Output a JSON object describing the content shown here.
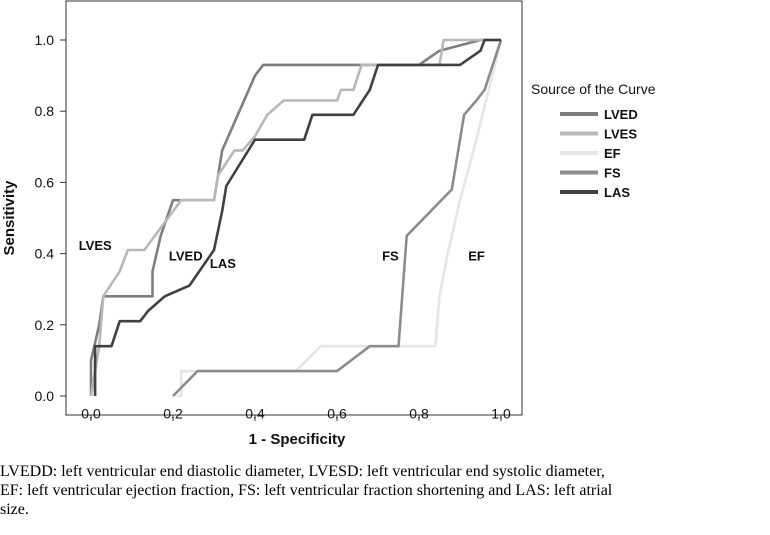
{
  "chart_data": {
    "type": "line",
    "xlabel": "1 - Specificity",
    "ylabel": "Sensitivity",
    "xlim": [
      0,
      1
    ],
    "ylim": [
      0,
      1
    ],
    "xticks": [
      "0.0",
      "0.2",
      "0.4",
      "0.6",
      "0.8",
      "1.0"
    ],
    "yticks": [
      "0.0",
      "0.2",
      "0.4",
      "0.6",
      "0.8",
      "1.0"
    ],
    "grid": false,
    "legend": {
      "title": "Source of the Curve",
      "placement": "right"
    },
    "series": [
      {
        "name": "LVED",
        "color": "#7f7f7f",
        "x": [
          0,
          0,
          0.02,
          0.03,
          0.05,
          0.15,
          0.15,
          0.17,
          0.2,
          0.3,
          0.32,
          0.4,
          0.42,
          0.8,
          0.85,
          0.95,
          1.0
        ],
        "y": [
          0,
          0.1,
          0.2,
          0.28,
          0.28,
          0.28,
          0.35,
          0.45,
          0.55,
          0.55,
          0.69,
          0.9,
          0.93,
          0.93,
          0.97,
          1.0,
          1.0
        ]
      },
      {
        "name": "LVES",
        "color": "#b8b8b8",
        "x": [
          0,
          0.02,
          0.03,
          0.07,
          0.09,
          0.13,
          0.22,
          0.3,
          0.31,
          0.35,
          0.37,
          0.4,
          0.43,
          0.47,
          0.6,
          0.61,
          0.64,
          0.66,
          0.85,
          0.86,
          1.0
        ],
        "y": [
          0,
          0.14,
          0.28,
          0.35,
          0.41,
          0.41,
          0.55,
          0.55,
          0.62,
          0.69,
          0.69,
          0.73,
          0.79,
          0.83,
          0.83,
          0.86,
          0.86,
          0.93,
          0.93,
          1.0,
          1.0
        ]
      },
      {
        "name": "EF",
        "color": "#e6e6e6",
        "x": [
          0.21,
          0.22,
          0.22,
          0.5,
          0.56,
          0.84,
          0.85,
          0.87,
          0.9,
          0.94,
          0.97,
          0.99,
          1.0
        ],
        "y": [
          0,
          0,
          0.07,
          0.07,
          0.14,
          0.14,
          0.28,
          0.4,
          0.55,
          0.72,
          0.86,
          0.95,
          1.0
        ]
      },
      {
        "name": "FS",
        "color": "#8c8c8c",
        "x": [
          0.2,
          0.26,
          0.6,
          0.68,
          0.75,
          0.77,
          0.88,
          0.89,
          0.9,
          0.91,
          0.94,
          0.96,
          0.98,
          1.0
        ],
        "y": [
          0,
          0.07,
          0.07,
          0.14,
          0.14,
          0.45,
          0.58,
          0.65,
          0.72,
          0.79,
          0.83,
          0.86,
          0.93,
          1.0
        ]
      },
      {
        "name": "LAS",
        "color": "#404040",
        "x": [
          0.01,
          0.01,
          0.05,
          0.07,
          0.1,
          0.12,
          0.14,
          0.18,
          0.24,
          0.3,
          0.32,
          0.33,
          0.4,
          0.42,
          0.52,
          0.54,
          0.64,
          0.68,
          0.7,
          0.85,
          0.9,
          0.95,
          0.96,
          1.0
        ],
        "y": [
          0,
          0.14,
          0.14,
          0.21,
          0.21,
          0.21,
          0.24,
          0.28,
          0.31,
          0.41,
          0.52,
          0.59,
          0.72,
          0.72,
          0.72,
          0.79,
          0.79,
          0.86,
          0.93,
          0.93,
          0.93,
          0.97,
          1.0,
          1.0
        ]
      }
    ],
    "annotations": [
      {
        "text": "LVES",
        "x": -0.03,
        "y": 0.41
      },
      {
        "text": "LVED",
        "x": 0.19,
        "y": 0.38
      },
      {
        "text": "LAS",
        "x": 0.29,
        "y": 0.36
      },
      {
        "text": "FS",
        "x": 0.71,
        "y": 0.38
      },
      {
        "text": "EF",
        "x": 0.92,
        "y": 0.38
      }
    ]
  },
  "caption": {
    "line1": "LVEDD: left ventricular end diastolic diameter, LVESD: left ventricular end systolic diameter,",
    "line2": "EF: left ventricular ejection  fraction, FS: left ventricular fraction shortening and  LAS: left atrial",
    "line3": "size."
  }
}
